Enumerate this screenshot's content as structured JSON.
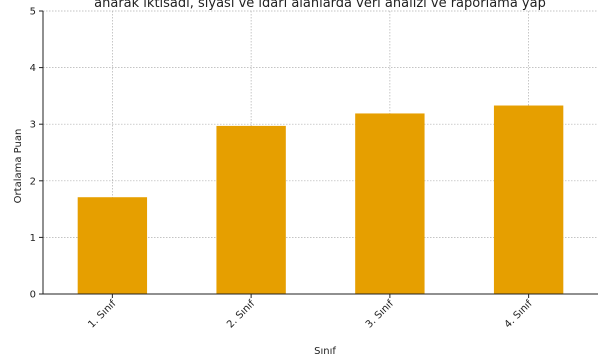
{
  "chart_data": {
    "type": "bar",
    "title": "anarak iktisadi, siyasi ve idari alanlarda veri analizi ve raporlama yap",
    "xlabel": "Sınıf",
    "ylabel": "Ortalama Puan",
    "categories": [
      "1. Sınıf",
      "2. Sınıf",
      "3. Sınıf",
      "4. Sınıf"
    ],
    "values": [
      1.71,
      2.97,
      3.19,
      3.33
    ],
    "ylim": [
      0,
      5
    ],
    "yticks": [
      0,
      1,
      2,
      3,
      4,
      5
    ],
    "grid": true,
    "bar_color": "#E69F00"
  }
}
